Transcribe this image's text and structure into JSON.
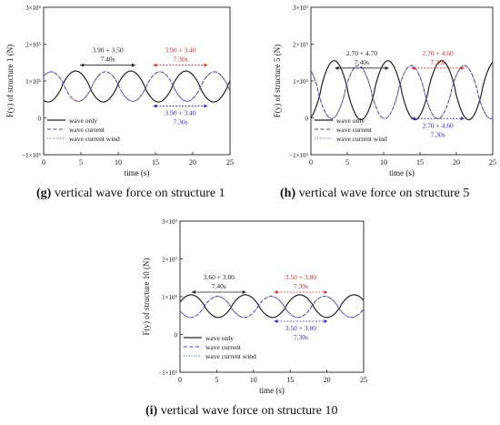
{
  "captions": [
    {
      "letter": "(g)",
      "text": " vertical wave force on structure 1"
    },
    {
      "letter": "(h)",
      "text": " vertical wave force on structure 5"
    },
    {
      "letter": "(i)",
      "text": " vertical wave force on structure 10"
    }
  ],
  "colors": {
    "wave_only": "#222222",
    "wave_current": "#3b3bd0",
    "wave_current_wind": "#2f6ff0",
    "current_overlay": "#d93030",
    "annotation_black": "#222222",
    "annotation_red": "#d93030",
    "annotation_blue": "#2b2bd0"
  },
  "chart_data": [
    {
      "id": "g",
      "type": "line",
      "xlabel": "time (s)",
      "ylabel": "F(y) of structure 1 (N)",
      "xlim": [
        0,
        25
      ],
      "ylim": [
        -100000,
        300000
      ],
      "xticks": [
        "0",
        "5",
        "10",
        "15",
        "20",
        "25"
      ],
      "yticks": [
        "−1×10⁵",
        "0",
        "1×10⁵",
        "2×10⁵",
        "3×10⁵"
      ],
      "legend": [
        "wave only",
        "wave current",
        "wave current wind"
      ],
      "legend_position": "lower-left",
      "series": [
        {
          "name": "wave only",
          "style": "solid",
          "period": 7.4,
          "phase": 4.3,
          "mean": 85000,
          "amplitude": 42000
        },
        {
          "name": "wave current",
          "style": "dashed",
          "period": 7.3,
          "phase": 1.0,
          "mean": 85000,
          "amplitude": 40000
        },
        {
          "name": "wave current wind",
          "style": "dotted",
          "period": 7.3,
          "phase": 1.0,
          "mean": 85000,
          "amplitude": 40000
        }
      ],
      "annotations": [
        {
          "label_top": "3.90 + 3.50",
          "label_bottom": "7.40s",
          "x": [
            4.9,
            12.3
          ],
          "y": 143000,
          "color": "annotation_black"
        },
        {
          "label_top": "3.90 + 3.40",
          "label_bottom": "7.30s",
          "x": [
            14.7,
            22.0
          ],
          "y": 143000,
          "color": "annotation_red"
        },
        {
          "label_top": "3.90 + 3.40",
          "label_bottom": "7.30s",
          "x": [
            14.7,
            22.0
          ],
          "y": 32000,
          "color": "annotation_blue"
        }
      ]
    },
    {
      "id": "h",
      "type": "line",
      "xlabel": "time (s)",
      "ylabel": "F(y) of structure 5 (N)",
      "xlim": [
        0,
        25
      ],
      "ylim": [
        -100000,
        300000
      ],
      "xticks": [
        "0",
        "5",
        "10",
        "15",
        "20",
        "25"
      ],
      "yticks": [
        "−1×10⁵",
        "0",
        "1×10⁵",
        "2×10⁵",
        "3×10⁵"
      ],
      "legend": [
        "wave only",
        "wave current",
        "wave current wind"
      ],
      "legend_position": "lower-left",
      "series": [
        {
          "name": "wave only",
          "style": "solid",
          "period": 7.4,
          "phase": 3.2,
          "mean": 75000,
          "amplitude": 80000
        },
        {
          "name": "wave current",
          "style": "dashed",
          "period": 7.3,
          "phase": 6.5,
          "mean": 70000,
          "amplitude": 72000
        },
        {
          "name": "wave current wind",
          "style": "dotted",
          "period": 7.3,
          "phase": 6.5,
          "mean": 70000,
          "amplitude": 72000
        }
      ],
      "annotations": [
        {
          "label_top": "2.70 + 4.70",
          "label_bottom": "7.40s",
          "x": [
            3.3,
            10.7
          ],
          "y": 135000,
          "color": "annotation_black"
        },
        {
          "label_top": "2.70 + 4.60",
          "label_bottom": "7.30s",
          "x": [
            13.8,
            21.1
          ],
          "y": 135000,
          "color": "annotation_red"
        },
        {
          "label_top": "2.70 + 4.60",
          "label_bottom": "7.30s",
          "x": [
            13.8,
            21.1
          ],
          "y": -2000,
          "color": "annotation_blue"
        }
      ]
    },
    {
      "id": "i",
      "type": "line",
      "xlabel": "time (s)",
      "ylabel": "F(y) of structure 10 (N)",
      "xlim": [
        0,
        25
      ],
      "ylim": [
        -100000,
        300000
      ],
      "xticks": [
        "0",
        "5",
        "10",
        "15",
        "20",
        "25"
      ],
      "yticks": [
        "−1×10⁵",
        "0",
        "1×10⁵",
        "2×10⁵",
        "3×10⁵"
      ],
      "legend": [
        "wave only",
        "wave current",
        "wave current wind"
      ],
      "legend_position": "lower-left",
      "series": [
        {
          "name": "wave only",
          "style": "solid",
          "period": 7.4,
          "phase": 1.5,
          "mean": 75000,
          "amplitude": 30000
        },
        {
          "name": "wave current",
          "style": "dashed",
          "period": 7.3,
          "phase": 5.1,
          "mean": 73000,
          "amplitude": 28000
        },
        {
          "name": "wave current wind",
          "style": "dotted",
          "period": 7.3,
          "phase": 5.1,
          "mean": 73000,
          "amplitude": 28000
        }
      ],
      "annotations": [
        {
          "label_top": "3.60 + 3.80",
          "label_bottom": "7.40s",
          "x": [
            1.6,
            9.0
          ],
          "y": 112000,
          "color": "annotation_black"
        },
        {
          "label_top": "3.50 + 3.80",
          "label_bottom": "7.30s",
          "x": [
            12.8,
            20.1
          ],
          "y": 112000,
          "color": "annotation_red"
        },
        {
          "label_top": "3.50 + 3.80",
          "label_bottom": "7.30s",
          "x": [
            12.8,
            20.1
          ],
          "y": 35000,
          "color": "annotation_blue"
        }
      ]
    }
  ]
}
